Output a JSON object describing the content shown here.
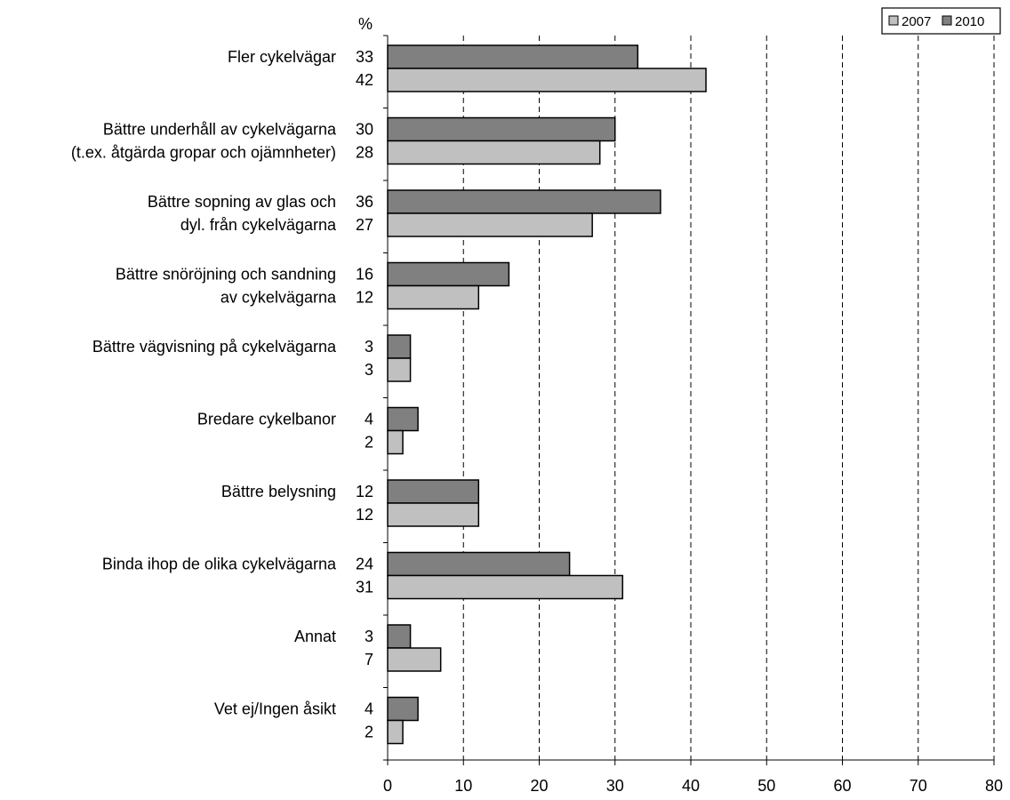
{
  "chart_data": {
    "type": "bar",
    "orientation": "horizontal",
    "unit_label": "%",
    "categories": [
      [
        "Fler cykelvägar"
      ],
      [
        "Bättre underhåll av cykelvägarna",
        "(t.ex. åtgärda gropar och ojämnheter)"
      ],
      [
        "Bättre sopning av glas och",
        "dyl. från cykelvägarna"
      ],
      [
        "Bättre snöröjning och sandning",
        "av cykelvägarna"
      ],
      [
        "Bättre vägvisning på cykelvägarna"
      ],
      [
        "Bredare cykelbanor"
      ],
      [
        "Bättre belysning"
      ],
      [
        "Binda ihop de olika cykelvägarna"
      ],
      [
        "Annat"
      ],
      [
        "Vet ej/Ingen åsikt"
      ]
    ],
    "series": [
      {
        "name": "2010",
        "color": "#808080",
        "values": [
          33,
          30,
          36,
          16,
          3,
          4,
          12,
          24,
          3,
          4
        ]
      },
      {
        "name": "2007",
        "color": "#c0c0c0",
        "values": [
          42,
          28,
          27,
          12,
          3,
          2,
          12,
          31,
          7,
          2
        ]
      }
    ],
    "legend": [
      "2007",
      "2010"
    ],
    "legend_position": "top-right",
    "xlim": [
      0,
      80
    ],
    "xticks": [
      0,
      10,
      20,
      30,
      40,
      50,
      60,
      70,
      80
    ],
    "grid": "vertical dashed"
  }
}
